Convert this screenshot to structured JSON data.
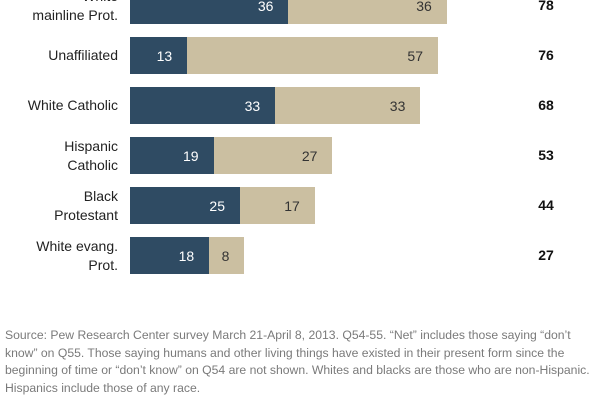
{
  "chart_data": {
    "type": "bar",
    "stacked": true,
    "orientation": "horizontal",
    "categories": [
      "White\nmainline Prot.",
      "Unaffiliated",
      "White Catholic",
      "Hispanic\nCatholic",
      "Black\nProtestant",
      "White evang.\nProt."
    ],
    "series": [
      {
        "values": [
          36,
          13,
          33,
          19,
          25,
          18
        ],
        "color": "#2f4b63"
      },
      {
        "values": [
          36,
          57,
          33,
          27,
          17,
          8
        ],
        "color": "#cbbfa1"
      }
    ],
    "net": [
      78,
      76,
      68,
      53,
      44,
      27
    ],
    "title": "",
    "xlabel": "",
    "ylabel": "",
    "grid": false,
    "legend": "none"
  },
  "source_note": "Source: Pew Research Center survey March 21-April 8, 2013. Q54-55. “Net” includes those saying “don’t know” on Q55. Those saying humans and other living things have existed in their present form since the beginning of time or “don’t know” on Q54 are not shown. Whites and blacks are those who are non-Hispanic. Hispanics include those of any race."
}
